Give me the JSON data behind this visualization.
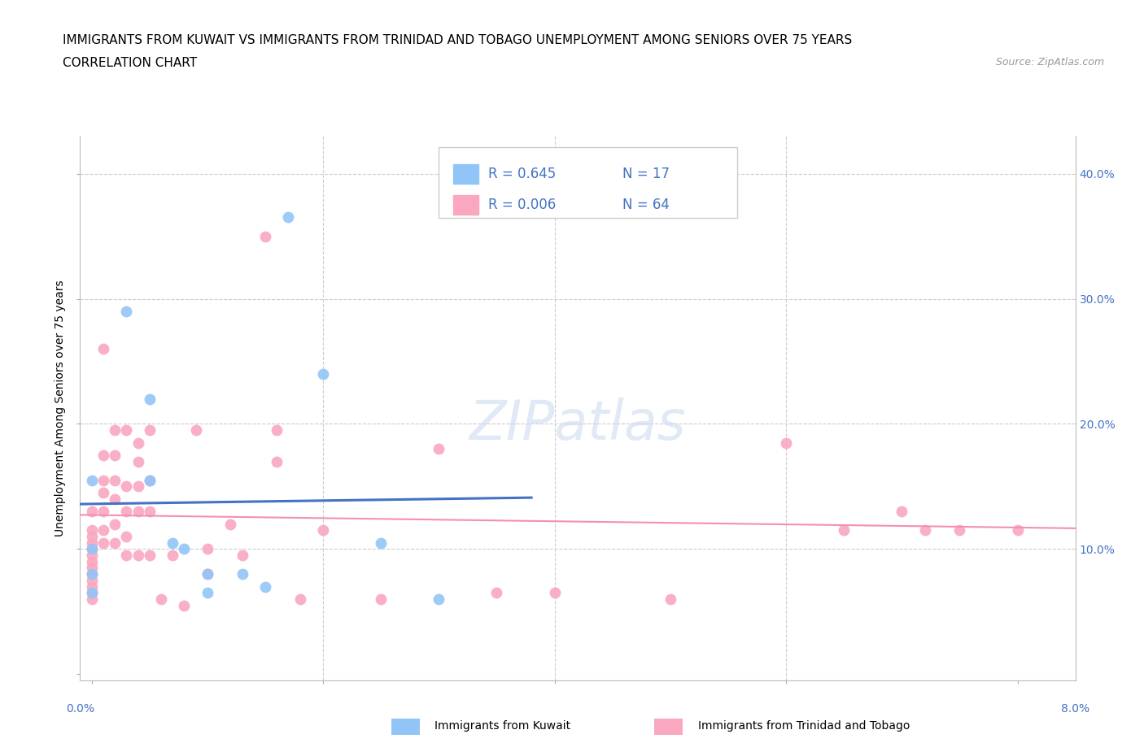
{
  "title_line1": "IMMIGRANTS FROM KUWAIT VS IMMIGRANTS FROM TRINIDAD AND TOBAGO UNEMPLOYMENT AMONG SENIORS OVER 75 YEARS",
  "title_line2": "CORRELATION CHART",
  "source_text": "Source: ZipAtlas.com",
  "ylabel_axis": "Unemployment Among Seniors over 75 years",
  "kuwait_R": 0.645,
  "kuwait_N": 17,
  "tt_R": 0.006,
  "tt_N": 64,
  "legend_label_kuwait": "Immigrants from Kuwait",
  "legend_label_tt": "Immigrants from Trinidad and Tobago",
  "watermark_text": "ZIPatlas",
  "kuwait_color": "#92c5f7",
  "tt_color": "#f9a8c0",
  "kuwait_line_color": "#4472c4",
  "tt_line_color": "#f48fb1",
  "kuwait_scatter": [
    [
      0.0,
      0.155
    ],
    [
      0.0,
      0.1
    ],
    [
      0.0,
      0.08
    ],
    [
      0.0,
      0.065
    ],
    [
      0.003,
      0.29
    ],
    [
      0.005,
      0.22
    ],
    [
      0.005,
      0.155
    ],
    [
      0.007,
      0.105
    ],
    [
      0.008,
      0.1
    ],
    [
      0.01,
      0.08
    ],
    [
      0.01,
      0.065
    ],
    [
      0.013,
      0.08
    ],
    [
      0.015,
      0.07
    ],
    [
      0.017,
      0.365
    ],
    [
      0.02,
      0.24
    ],
    [
      0.025,
      0.105
    ],
    [
      0.03,
      0.06
    ]
  ],
  "tt_scatter": [
    [
      0.0,
      0.13
    ],
    [
      0.0,
      0.115
    ],
    [
      0.0,
      0.11
    ],
    [
      0.0,
      0.105
    ],
    [
      0.0,
      0.1
    ],
    [
      0.0,
      0.095
    ],
    [
      0.0,
      0.09
    ],
    [
      0.0,
      0.085
    ],
    [
      0.0,
      0.08
    ],
    [
      0.0,
      0.075
    ],
    [
      0.0,
      0.07
    ],
    [
      0.0,
      0.065
    ],
    [
      0.0,
      0.06
    ],
    [
      0.001,
      0.26
    ],
    [
      0.001,
      0.175
    ],
    [
      0.001,
      0.155
    ],
    [
      0.001,
      0.145
    ],
    [
      0.001,
      0.13
    ],
    [
      0.001,
      0.115
    ],
    [
      0.001,
      0.105
    ],
    [
      0.002,
      0.195
    ],
    [
      0.002,
      0.175
    ],
    [
      0.002,
      0.155
    ],
    [
      0.002,
      0.14
    ],
    [
      0.002,
      0.12
    ],
    [
      0.002,
      0.105
    ],
    [
      0.003,
      0.195
    ],
    [
      0.003,
      0.15
    ],
    [
      0.003,
      0.13
    ],
    [
      0.003,
      0.11
    ],
    [
      0.003,
      0.095
    ],
    [
      0.004,
      0.185
    ],
    [
      0.004,
      0.17
    ],
    [
      0.004,
      0.15
    ],
    [
      0.004,
      0.13
    ],
    [
      0.004,
      0.095
    ],
    [
      0.005,
      0.195
    ],
    [
      0.005,
      0.155
    ],
    [
      0.005,
      0.13
    ],
    [
      0.005,
      0.095
    ],
    [
      0.006,
      0.06
    ],
    [
      0.007,
      0.095
    ],
    [
      0.008,
      0.055
    ],
    [
      0.009,
      0.195
    ],
    [
      0.01,
      0.1
    ],
    [
      0.01,
      0.08
    ],
    [
      0.012,
      0.12
    ],
    [
      0.013,
      0.095
    ],
    [
      0.015,
      0.35
    ],
    [
      0.016,
      0.195
    ],
    [
      0.016,
      0.17
    ],
    [
      0.018,
      0.06
    ],
    [
      0.02,
      0.115
    ],
    [
      0.025,
      0.06
    ],
    [
      0.03,
      0.18
    ],
    [
      0.035,
      0.065
    ],
    [
      0.04,
      0.065
    ],
    [
      0.05,
      0.06
    ],
    [
      0.06,
      0.185
    ],
    [
      0.065,
      0.115
    ],
    [
      0.07,
      0.13
    ],
    [
      0.072,
      0.115
    ],
    [
      0.075,
      0.115
    ],
    [
      0.08,
      0.115
    ]
  ],
  "xlim": [
    -0.001,
    0.085
  ],
  "ylim": [
    -0.005,
    0.43
  ],
  "xgrid_ticks": [
    0.02,
    0.04,
    0.06
  ],
  "ygrid_ticks": [
    0.1,
    0.2,
    0.3,
    0.4
  ],
  "bg_color": "#ffffff",
  "grid_color": "#cccccc",
  "title_fontsize": 11,
  "axis_label_fontsize": 10,
  "tick_fontsize": 10,
  "scatter_size": 100
}
